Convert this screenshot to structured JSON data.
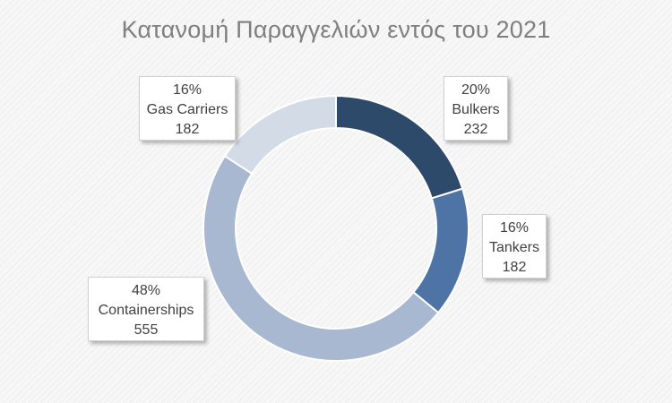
{
  "chart_data": {
    "type": "pie",
    "title": "Κατανομή Παραγγελιών εντός του 2021",
    "categories": [
      "Bulkers",
      "Tankers",
      "Containerships",
      "Gas Carriers"
    ],
    "values": [
      232,
      182,
      555,
      182
    ],
    "percent_labels": [
      "20%",
      "16%",
      "48%",
      "16%"
    ],
    "colors": [
      "#2e4a6b",
      "#4e74a6",
      "#a7b8d0",
      "#d3dbe6"
    ],
    "donut": true,
    "start_angle_deg": 0,
    "direction": "clockwise"
  }
}
